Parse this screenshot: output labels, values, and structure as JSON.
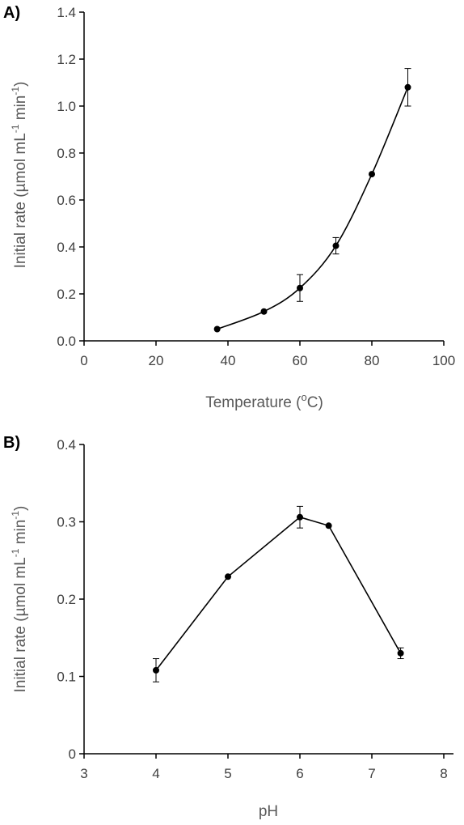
{
  "chart_data": [
    {
      "type": "line",
      "panel_label": "A)",
      "smooth": true,
      "xlabel": "Temperature (",
      "xlabel_sup": "o",
      "xlabel_end": "C)",
      "ylabel": "Initial rate (µmol mL",
      "ylabel_sup1": "-1",
      "ylabel_mid": " min",
      "ylabel_sup2": "-1",
      "ylabel_end": ")",
      "xlim": [
        0,
        100
      ],
      "ylim": [
        0,
        1.4
      ],
      "x_ticks": [
        "0",
        "20",
        "40",
        "60",
        "80",
        "100"
      ],
      "y_ticks": [
        "0.0",
        "0.2",
        "0.4",
        "0.6",
        "0.8",
        "1.0",
        "1.2",
        "1.4"
      ],
      "x": [
        37,
        50,
        60,
        70,
        80,
        90
      ],
      "y": [
        0.05,
        0.125,
        0.225,
        0.405,
        0.71,
        1.08
      ],
      "err": [
        0,
        0,
        0.057,
        0.035,
        0,
        0.08
      ]
    },
    {
      "type": "line",
      "panel_label": "B)",
      "smooth": false,
      "xlabel": "pH",
      "ylabel": "Initial rate (µmol mL",
      "ylabel_sup1": "-1",
      "ylabel_mid": " min",
      "ylabel_sup2": "-1",
      "ylabel_end": ")",
      "xlim": [
        3,
        8
      ],
      "ylim": [
        0,
        0.4
      ],
      "x_ticks": [
        "3",
        "4",
        "5",
        "6",
        "7",
        "8"
      ],
      "y_ticks": [
        "0",
        "0.1",
        "0.2",
        "0.3",
        "0.4"
      ],
      "x": [
        4,
        5,
        6,
        6.4,
        7.4
      ],
      "y": [
        0.108,
        0.229,
        0.306,
        0.295,
        0.13
      ],
      "err": [
        0.015,
        0,
        0.014,
        0,
        0.007
      ]
    }
  ]
}
